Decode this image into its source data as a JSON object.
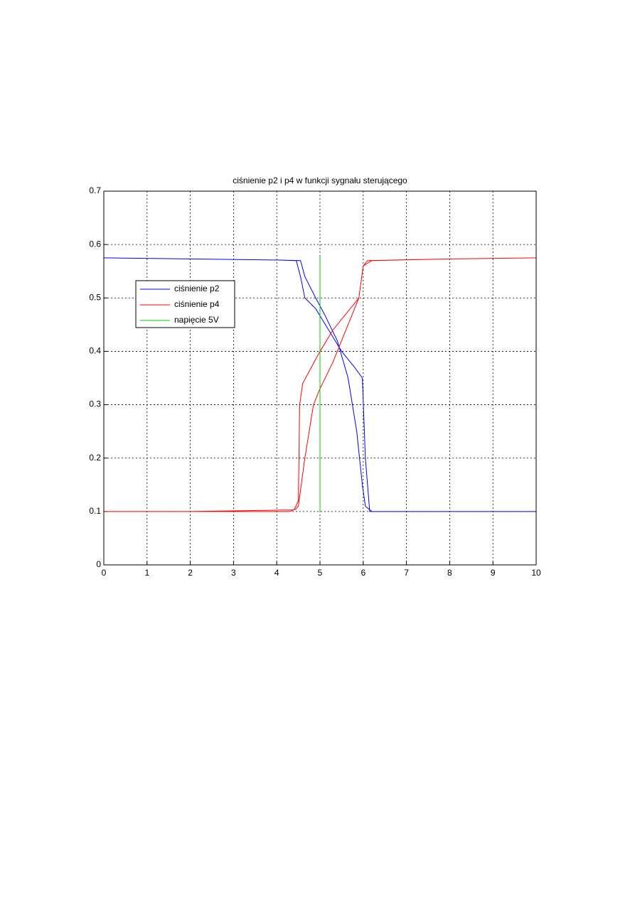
{
  "chart_data": {
    "type": "line",
    "title": "ciśnienie p2 i p4 w funkcji sygnału sterującego",
    "xlim": [
      0,
      10
    ],
    "xticks": [
      0,
      1,
      2,
      3,
      4,
      5,
      6,
      7,
      8,
      9,
      10
    ],
    "ylim": [
      0,
      0.7
    ],
    "yticks": [
      0,
      0.1,
      0.2,
      0.3,
      0.4,
      0.5,
      0.6,
      0.7
    ],
    "grid": true,
    "legend": "upper left",
    "series": [
      {
        "name": "ciśnienie p2",
        "color": "#0000ff",
        "x": [
          0,
          2,
          4,
          4.45,
          4.55,
          4.65,
          4.9,
          5.2,
          5.5,
          5.8,
          5.98,
          6.05,
          6.15,
          8,
          10,
          10,
          8,
          6.2,
          6.05,
          5.98,
          5.85,
          5.65,
          5.4,
          5.1,
          4.9,
          4.65,
          4.55,
          4,
          2,
          0
        ],
        "values": [
          0.575,
          0.573,
          0.571,
          0.57,
          0.54,
          0.5,
          0.48,
          0.44,
          0.4,
          0.37,
          0.35,
          0.2,
          0.1,
          0.1,
          0.1,
          0.1,
          0.1,
          0.1,
          0.11,
          0.15,
          0.25,
          0.35,
          0.42,
          0.47,
          0.5,
          0.54,
          0.57,
          0.571,
          0.573,
          0.575
        ]
      },
      {
        "name": "ciśnienie p4",
        "color": "#ff0000",
        "x": [
          0,
          2,
          4.3,
          4.45,
          4.5,
          4.65,
          4.85,
          5,
          5.3,
          5.6,
          5.9,
          6,
          6.2,
          8,
          10,
          10,
          8,
          6.1,
          6,
          5.9,
          5.7,
          5.3,
          5,
          4.8,
          4.6,
          4.53,
          4.5,
          4.4,
          2,
          0
        ],
        "values": [
          0.1,
          0.1,
          0.1,
          0.105,
          0.11,
          0.2,
          0.3,
          0.33,
          0.38,
          0.44,
          0.5,
          0.56,
          0.57,
          0.573,
          0.575,
          0.575,
          0.573,
          0.57,
          0.56,
          0.5,
          0.48,
          0.44,
          0.4,
          0.37,
          0.34,
          0.3,
          0.12,
          0.103,
          0.1,
          0.1
        ]
      },
      {
        "name": "napięcie 5V",
        "color": "#00cc00",
        "x": [
          5,
          5
        ],
        "values": [
          0.1,
          0.578
        ]
      }
    ]
  }
}
